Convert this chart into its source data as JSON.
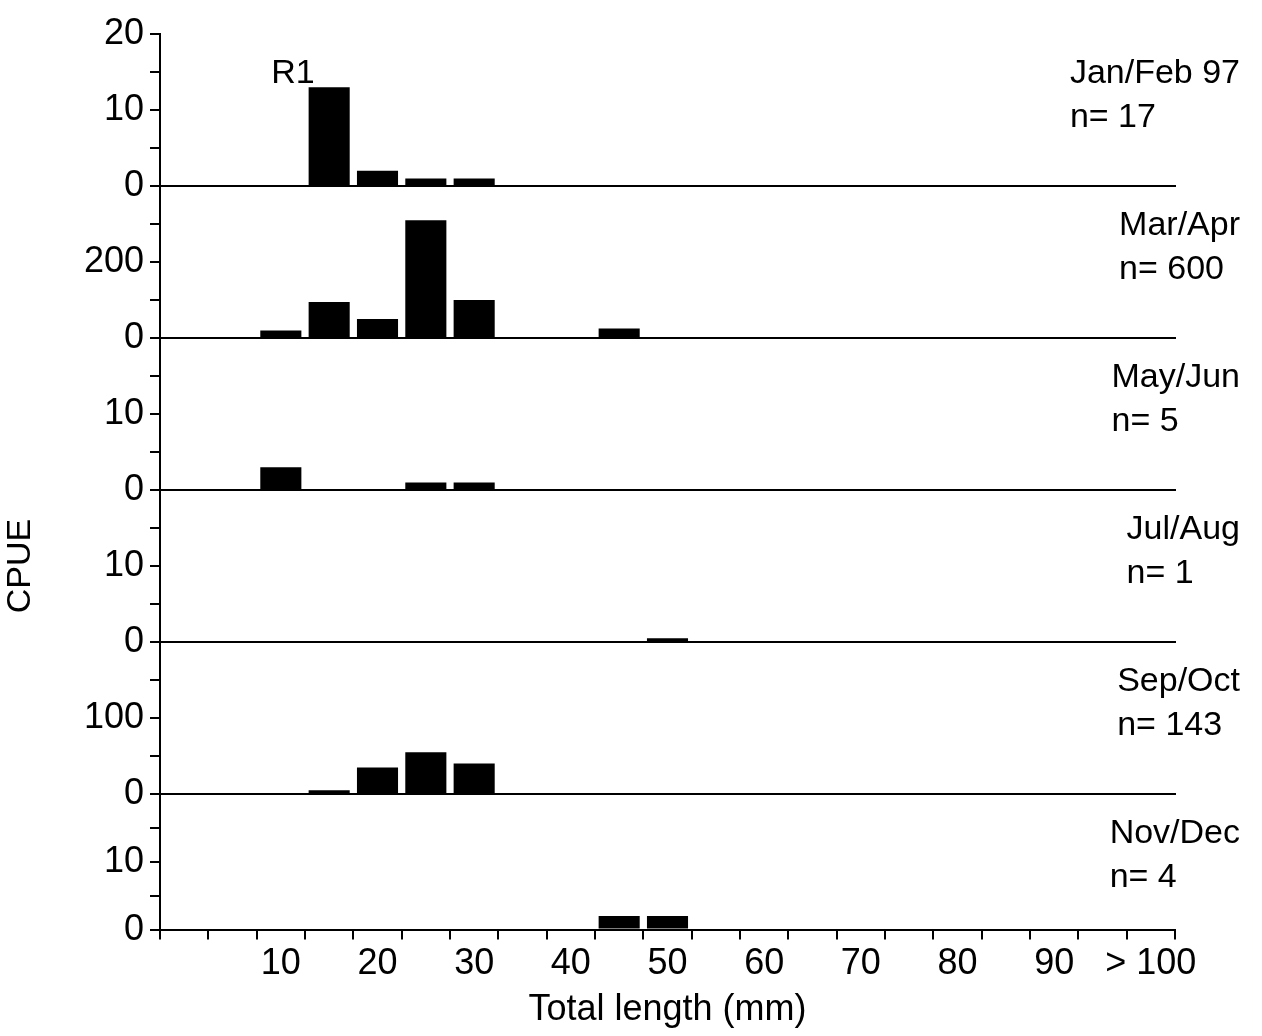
{
  "chart_data": [
    {
      "type": "bar",
      "title": "Jan/Feb 97",
      "annotations": [
        "n= 17",
        "R1"
      ],
      "values": [
        0,
        0,
        0,
        13,
        2,
        1,
        1,
        0,
        0,
        0,
        0,
        0,
        0,
        0,
        0,
        0,
        0,
        0,
        0,
        0,
        0
      ],
      "color": "#000000",
      "ylim": [
        0,
        20
      ],
      "yticks": [
        0,
        {
          "value": 5,
          "label": null
        },
        10,
        {
          "value": 15,
          "label": null
        },
        20
      ],
      "tick_labels": "y"
    },
    {
      "type": "bar",
      "title": "Mar/Apr",
      "annotations": [
        "n= 600"
      ],
      "values": [
        0,
        0,
        20,
        95,
        50,
        310,
        100,
        0,
        0,
        25,
        0,
        0,
        0,
        0,
        0,
        0,
        0,
        0,
        0,
        0,
        0
      ],
      "color": "#000000",
      "ylim": [
        0,
        400
      ],
      "yticks": [
        0,
        {
          "value": 100,
          "label": null
        },
        200,
        {
          "value": 300,
          "label": null
        }
      ],
      "tick_labels": "y"
    },
    {
      "type": "bar",
      "title": "May/Jun",
      "annotations": [
        "n= 5"
      ],
      "values": [
        0,
        0,
        3,
        0,
        0,
        1,
        1,
        0,
        0,
        0,
        0,
        0,
        0,
        0,
        0,
        0,
        0,
        0,
        0,
        0,
        0
      ],
      "color": "#000000",
      "ylim": [
        0,
        20
      ],
      "yticks": [
        0,
        {
          "value": 5,
          "label": null
        },
        10,
        {
          "value": 15,
          "label": null
        }
      ],
      "tick_labels": "y"
    },
    {
      "type": "bar",
      "title": "Jul/Aug",
      "annotations": [
        "n= 1"
      ],
      "ylabel": "CPUE",
      "values": [
        0,
        0,
        0,
        0,
        0,
        0,
        0,
        0,
        0,
        0,
        0.5,
        0,
        0,
        0,
        0,
        0,
        0,
        0,
        0,
        0,
        0
      ],
      "color": "#000000",
      "ylim": [
        0,
        20
      ],
      "yticks": [
        0,
        {
          "value": 5,
          "label": null
        },
        10,
        {
          "value": 15,
          "label": null
        }
      ],
      "tick_labels": "y"
    },
    {
      "type": "bar",
      "title": "Sep/Oct",
      "annotations": [
        "n= 143"
      ],
      "values": [
        0,
        0,
        0,
        5,
        35,
        55,
        40,
        0,
        0,
        0,
        0,
        0,
        0,
        0,
        0,
        0,
        0,
        0,
        0,
        0,
        0
      ],
      "color": "#000000",
      "ylim": [
        0,
        200
      ],
      "yticks": [
        0,
        {
          "value": 50,
          "label": null
        },
        100,
        {
          "value": 150,
          "label": null
        }
      ],
      "tick_labels": "y"
    },
    {
      "type": "bar",
      "title": "Nov/Dec",
      "annotations": [
        "n= 4"
      ],
      "xlabel": "Total length (mm)",
      "categories": [
        null,
        null,
        "10",
        null,
        "20",
        null,
        "30",
        null,
        "40",
        null,
        "50",
        null,
        "60",
        null,
        "70",
        null,
        "80",
        null,
        "90",
        null,
        "> 100"
      ],
      "values": [
        0,
        0,
        0,
        0,
        0,
        0,
        0,
        0,
        0,
        2,
        2,
        0,
        0,
        0,
        0,
        0,
        0,
        0,
        0,
        0,
        0
      ],
      "color": "#000000",
      "ylim": [
        0,
        20
      ],
      "yticks": [
        0,
        {
          "value": 5,
          "label": null
        },
        10,
        {
          "value": 15,
          "label": null
        }
      ]
    }
  ]
}
